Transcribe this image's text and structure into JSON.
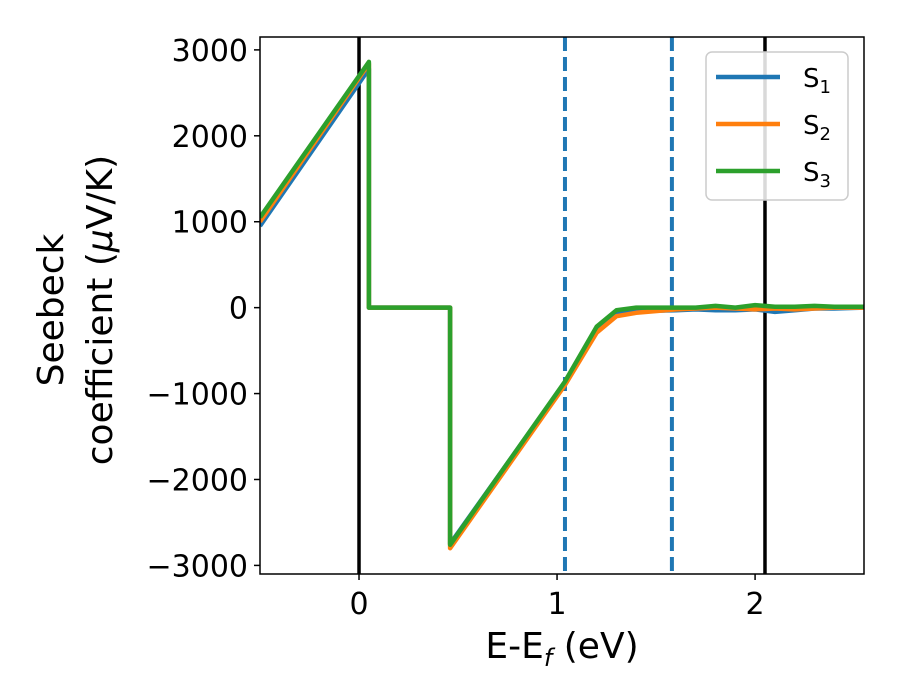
{
  "chart_data": {
    "type": "line",
    "xlabel_parts": [
      "E-E",
      "f",
      " (eV)"
    ],
    "ylabel_line1": "Seebeck",
    "ylabel_line2_parts": [
      "coefficient  (",
      "μ",
      "V/K)"
    ],
    "xlim": [
      -0.5,
      2.55
    ],
    "ylim": [
      -3100,
      3150
    ],
    "xticks": [
      0,
      1,
      2
    ],
    "xtick_labels": [
      "0",
      "1",
      "2"
    ],
    "yticks": [
      -3000,
      -2000,
      -1000,
      0,
      1000,
      2000,
      3000
    ],
    "ytick_labels": [
      "−3000",
      "−2000",
      "−1000",
      "0",
      "1000",
      "2000",
      "3000"
    ],
    "grid": false,
    "legend_position": "top-right",
    "vlines": [
      {
        "x": 0.0,
        "style": "solid",
        "color": "#000000"
      },
      {
        "x": 1.04,
        "style": "dashed",
        "color": "#1f77b4"
      },
      {
        "x": 1.58,
        "style": "dashed",
        "color": "#1f77b4"
      },
      {
        "x": 2.05,
        "style": "solid",
        "color": "#000000"
      }
    ],
    "series": [
      {
        "name_base": "S",
        "name_sub": "1",
        "color": "#1f77b4",
        "x": [
          -0.5,
          0.05,
          0.05,
          0.46,
          0.46,
          1.04,
          1.2,
          1.3,
          1.4,
          1.6,
          1.7,
          1.8,
          1.9,
          2.0,
          2.1,
          2.2,
          2.3,
          2.4,
          2.55
        ],
        "y": [
          950,
          2780,
          0,
          0,
          -2750,
          -870,
          -250,
          -70,
          -40,
          -30,
          -20,
          -30,
          -30,
          -20,
          -50,
          -30,
          -10,
          -10,
          0
        ]
      },
      {
        "name_base": "S",
        "name_sub": "2",
        "color": "#ff7f0e",
        "x": [
          -0.5,
          0.05,
          0.05,
          0.46,
          0.46,
          1.04,
          1.2,
          1.3,
          1.4,
          1.6,
          1.7,
          1.8,
          1.9,
          2.0,
          2.1,
          2.2,
          2.3,
          2.4,
          2.55
        ],
        "y": [
          1000,
          2840,
          0,
          0,
          -2800,
          -900,
          -290,
          -100,
          -60,
          -20,
          -10,
          0,
          -10,
          -20,
          -10,
          -20,
          -10,
          0,
          0
        ]
      },
      {
        "name_base": "S",
        "name_sub": "3",
        "color": "#2ca02c",
        "x": [
          -0.5,
          0.05,
          0.05,
          0.46,
          0.46,
          1.04,
          1.2,
          1.3,
          1.4,
          1.6,
          1.7,
          1.8,
          1.9,
          2.0,
          2.1,
          2.2,
          2.3,
          2.4,
          2.55
        ],
        "y": [
          1050,
          2860,
          0,
          0,
          -2760,
          -860,
          -220,
          -30,
          0,
          0,
          0,
          20,
          0,
          30,
          10,
          10,
          20,
          10,
          10
        ]
      }
    ]
  }
}
